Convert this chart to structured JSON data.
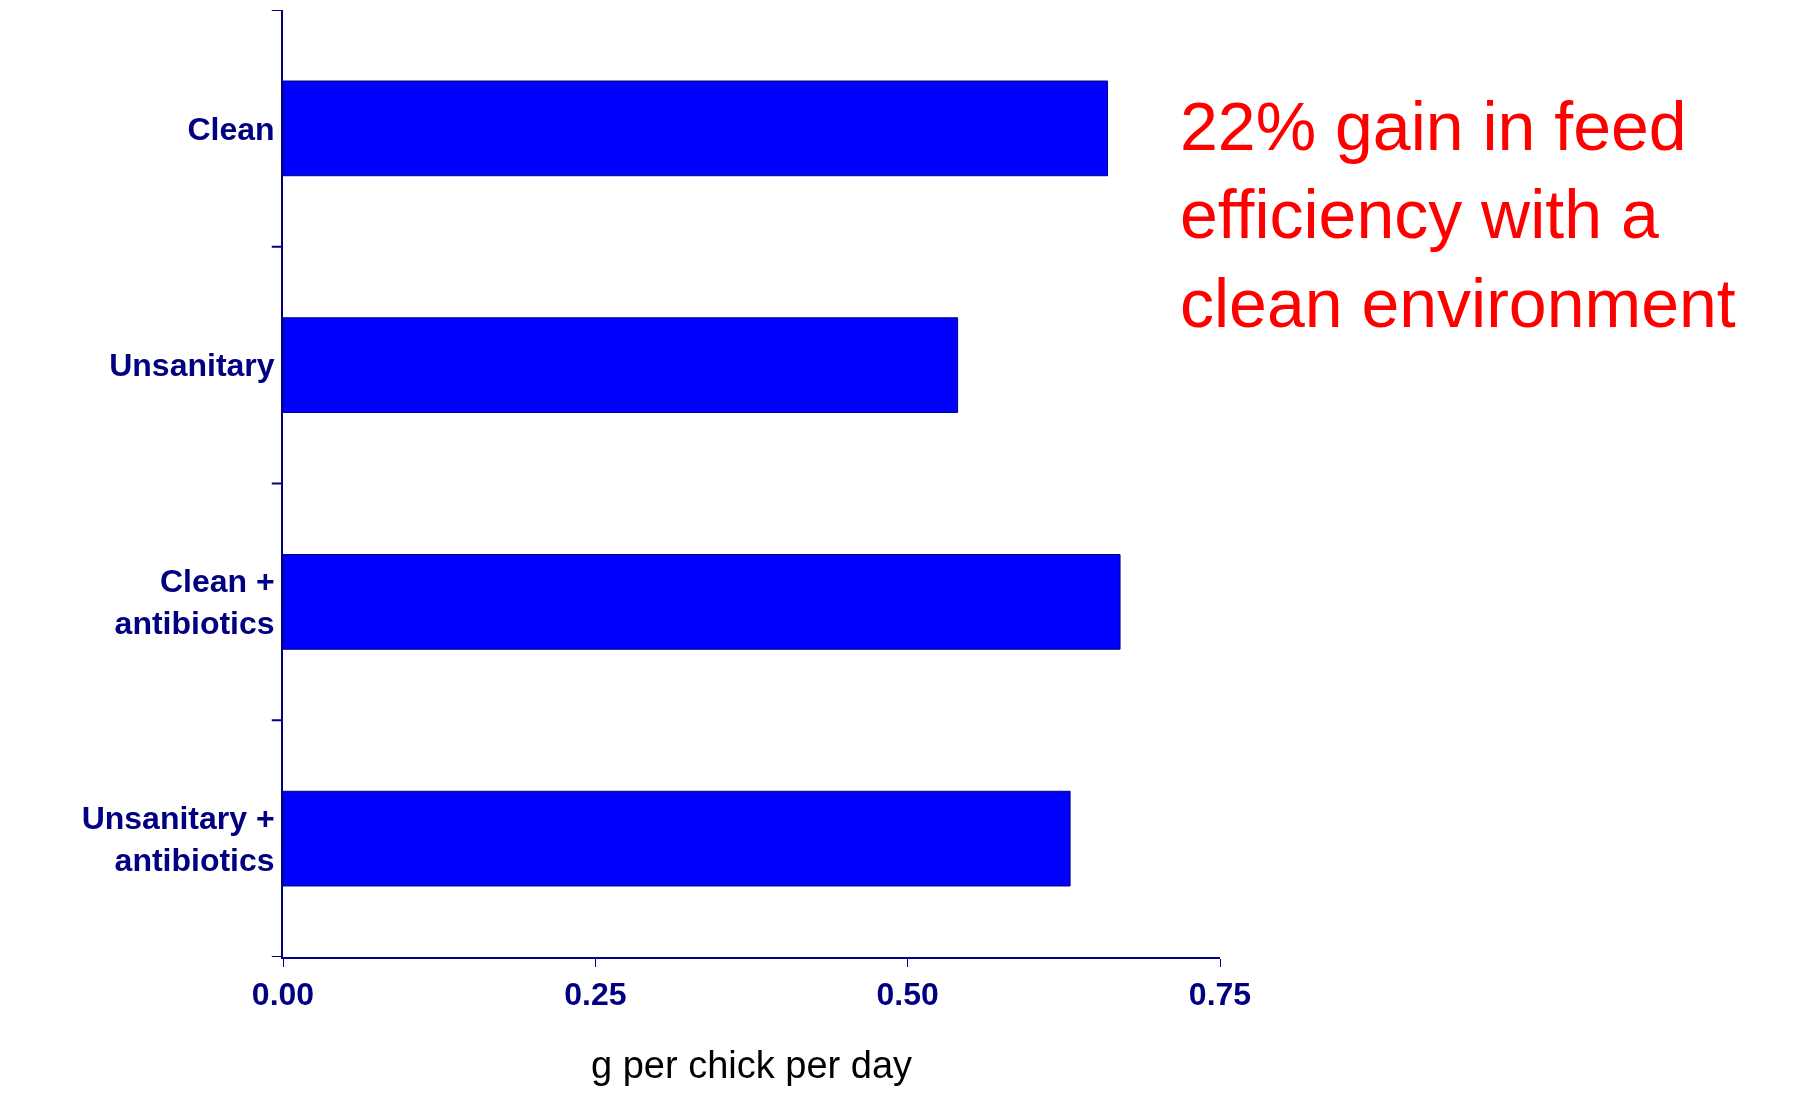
{
  "chart_data": {
    "type": "bar",
    "orientation": "horizontal",
    "categories": [
      "Clean",
      "Unsanitary",
      "Clean + antibiotics",
      "Unsanitary + antibiotics"
    ],
    "values": [
      0.66,
      0.54,
      0.67,
      0.63
    ],
    "color": "#0000ff",
    "xlim": [
      0,
      0.75
    ],
    "xticks": [
      {
        "value": 0,
        "label": "0.00"
      },
      {
        "value": 0.25,
        "label": "0.25"
      },
      {
        "value": 0.5,
        "label": "0.50"
      },
      {
        "value": 0.75,
        "label": "0.75"
      }
    ],
    "xlabel": "g per chick per day",
    "grid": false,
    "legend": false,
    "annotations": [
      "22% gain in feed efficiency with a clean environment"
    ]
  }
}
